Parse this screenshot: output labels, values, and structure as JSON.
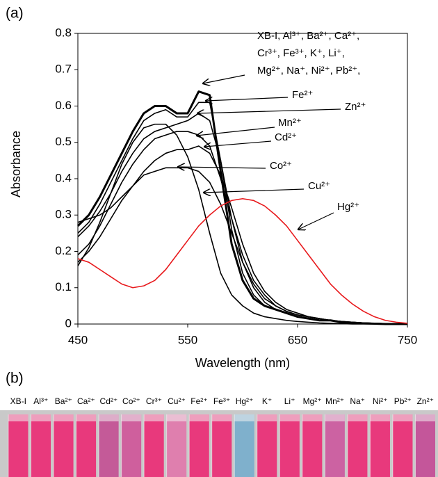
{
  "chart_data": {
    "type": "line",
    "panel_label": "(a)",
    "x_label": "Wavelength (nm)",
    "y_label": "Absorbance",
    "x": [
      450,
      460,
      470,
      480,
      490,
      500,
      510,
      520,
      530,
      540,
      550,
      560,
      570,
      580,
      590,
      600,
      610,
      620,
      630,
      640,
      650,
      660,
      670,
      680,
      690,
      700,
      710,
      720,
      730,
      740,
      750
    ],
    "xlim": [
      450,
      750
    ],
    "xticks": [
      450,
      550,
      650,
      750
    ],
    "ylim": [
      0,
      0.8
    ],
    "yticks": [
      0,
      0.1,
      0.2,
      0.3,
      0.4,
      0.5,
      0.6,
      0.7,
      0.8
    ],
    "series": [
      {
        "color": "#000000",
        "values": [
          0.27,
          0.3,
          0.35,
          0.41,
          0.47,
          0.53,
          0.58,
          0.6,
          0.6,
          0.58,
          0.58,
          0.64,
          0.63,
          0.42,
          0.22,
          0.12,
          0.07,
          0.05,
          0.04,
          0.03,
          0.02,
          0.015,
          0.01,
          0.01,
          0.005,
          0.003,
          0.002,
          0.001,
          0,
          0,
          0
        ]
      },
      {
        "color": "#000000",
        "values": [
          0.25,
          0.28,
          0.33,
          0.39,
          0.45,
          0.51,
          0.56,
          0.58,
          0.59,
          0.57,
          0.57,
          0.61,
          0.61,
          0.45,
          0.26,
          0.14,
          0.08,
          0.05,
          0.04,
          0.03,
          0.02,
          0.015,
          0.01,
          0.01,
          0.005,
          0.003,
          0.002,
          0.001,
          0,
          0,
          0
        ]
      },
      {
        "color": "#000000",
        "values": [
          0.24,
          0.27,
          0.31,
          0.36,
          0.42,
          0.47,
          0.51,
          0.53,
          0.54,
          0.55,
          0.56,
          0.58,
          0.56,
          0.45,
          0.29,
          0.17,
          0.1,
          0.06,
          0.04,
          0.03,
          0.02,
          0.015,
          0.01,
          0.01,
          0.005,
          0.003,
          0.002,
          0.001,
          0,
          0,
          0
        ]
      },
      {
        "color": "#000000",
        "values": [
          0.19,
          0.22,
          0.27,
          0.33,
          0.39,
          0.44,
          0.48,
          0.51,
          0.52,
          0.53,
          0.53,
          0.52,
          0.49,
          0.4,
          0.29,
          0.19,
          0.12,
          0.08,
          0.05,
          0.035,
          0.025,
          0.02,
          0.015,
          0.01,
          0.007,
          0.005,
          0.003,
          0.002,
          0.001,
          0,
          0
        ]
      },
      {
        "color": "#000000",
        "values": [
          0.17,
          0.2,
          0.24,
          0.29,
          0.34,
          0.38,
          0.42,
          0.45,
          0.47,
          0.48,
          0.48,
          0.49,
          0.47,
          0.41,
          0.32,
          0.22,
          0.14,
          0.09,
          0.06,
          0.04,
          0.03,
          0.02,
          0.015,
          0.01,
          0.007,
          0.005,
          0.003,
          0.002,
          0.001,
          0,
          0
        ]
      },
      {
        "color": "#000000",
        "values": [
          0.28,
          0.29,
          0.3,
          0.32,
          0.35,
          0.38,
          0.41,
          0.42,
          0.43,
          0.43,
          0.43,
          0.42,
          0.39,
          0.33,
          0.25,
          0.17,
          0.11,
          0.07,
          0.05,
          0.035,
          0.025,
          0.02,
          0.015,
          0.01,
          0.007,
          0.005,
          0.003,
          0.002,
          0.001,
          0,
          0
        ]
      },
      {
        "color": "#000000",
        "values": [
          0.16,
          0.21,
          0.28,
          0.36,
          0.44,
          0.5,
          0.54,
          0.55,
          0.55,
          0.52,
          0.46,
          0.37,
          0.25,
          0.14,
          0.08,
          0.05,
          0.03,
          0.02,
          0.015,
          0.01,
          0.007,
          0.005,
          0.003,
          0.002,
          0.001,
          0,
          0,
          0,
          0,
          0,
          0
        ]
      },
      {
        "color": "#e8191c",
        "values": [
          0.18,
          0.17,
          0.15,
          0.13,
          0.11,
          0.1,
          0.105,
          0.12,
          0.15,
          0.19,
          0.23,
          0.27,
          0.3,
          0.325,
          0.34,
          0.345,
          0.34,
          0.325,
          0.3,
          0.27,
          0.23,
          0.19,
          0.15,
          0.11,
          0.08,
          0.055,
          0.035,
          0.02,
          0.01,
          0.005,
          0.002
        ]
      }
    ],
    "annotations": [
      [
        "XB-I, Al³⁺, Ba²⁺, Ca²⁺,",
        "Cr³⁺, Fe³⁺, K⁺, Li⁺,",
        "Mg²⁺, Na⁺,  Ni²⁺, Pb²⁺,"
      ],
      [
        "Fe²⁺"
      ],
      [
        "Zn²⁺"
      ],
      [
        "Mn²⁺"
      ],
      [
        "Cd²⁺"
      ],
      [
        "Co²⁺"
      ],
      [
        "Cu²⁺"
      ],
      [
        "Hg²⁺"
      ]
    ]
  },
  "photo": {
    "panel_label": "(b)",
    "labels": [
      "XB-I",
      "Al³⁺",
      "Ba²⁺",
      "Ca²⁺",
      "Cd²⁺",
      "Co²⁺",
      "Cr³⁺",
      "Cu²⁺",
      "Fe²⁺",
      "Fe³⁺",
      "Hg²⁺",
      "K⁺",
      "Li⁺",
      "Mg²⁺",
      "Mn²⁺",
      "Na⁺",
      "Ni²⁺",
      "Pb²⁺",
      "Zn²⁺"
    ]
  }
}
